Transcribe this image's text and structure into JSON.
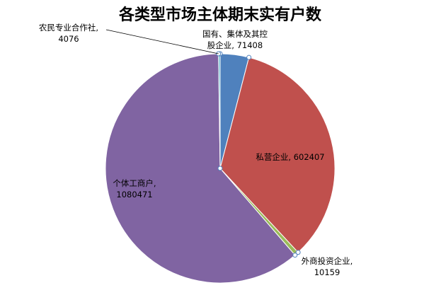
{
  "chart_data": {
    "type": "pie",
    "title": "各类型市场主体期末实有户数",
    "slices": [
      {
        "label": "国有、集体及其控股企业",
        "value": 71408,
        "color": "#4f81bd",
        "text_lines": [
          "国有、集体及其控",
          "股企业, 71408"
        ]
      },
      {
        "label": "私营企业",
        "value": 602407,
        "color": "#c0504d",
        "text_lines": [
          "私营企业, 602407"
        ]
      },
      {
        "label": "外商投资企业",
        "value": 10159,
        "color": "#9bbb59",
        "text_lines": [
          "外商投资企业,",
          "10159"
        ]
      },
      {
        "label": "个体工商户",
        "value": 1080471,
        "color": "#8064a2",
        "text_lines": [
          "个体工商户,",
          "1080471"
        ]
      },
      {
        "label": "农民专业合作社",
        "value": 4076,
        "color": "#4bacc6",
        "text_lines": [
          "农民专业合作社,",
          "4076"
        ]
      }
    ],
    "legend": "none",
    "data_labels": "category, value"
  }
}
